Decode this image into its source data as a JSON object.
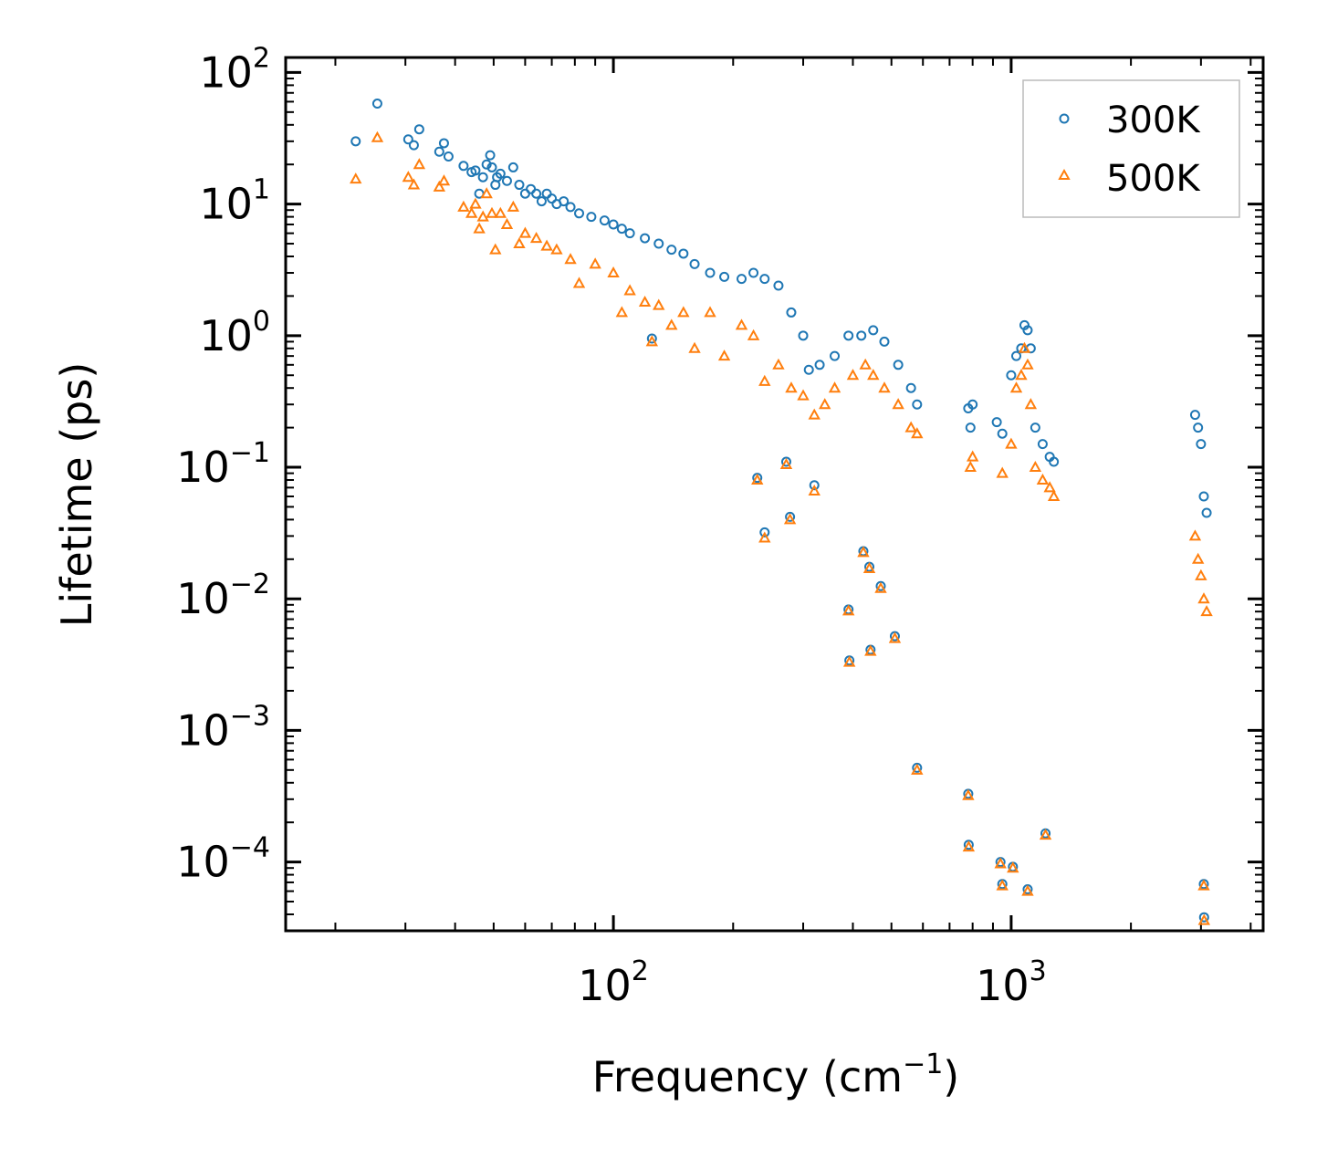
{
  "chart_data": {
    "type": "scatter",
    "title": "",
    "xlabel": "Frequency (cm",
    "xlabel_sup": "−1",
    "xlabel_end": ")",
    "ylabel": "Lifetime (ps)",
    "xscale": "log",
    "yscale": "log",
    "xlim": [
      15,
      4300
    ],
    "ylim": [
      3e-05,
      130
    ],
    "x_ticks": [
      {
        "value": 100,
        "base": "10",
        "exp": "2"
      },
      {
        "value": 1000,
        "base": "10",
        "exp": "3"
      }
    ],
    "y_ticks": [
      {
        "value": 100,
        "base": "10",
        "exp": "2"
      },
      {
        "value": 10,
        "base": "10",
        "exp": "1"
      },
      {
        "value": 1,
        "base": "10",
        "exp": "0"
      },
      {
        "value": 0.1,
        "base": "10",
        "exp": "−1"
      },
      {
        "value": 0.01,
        "base": "10",
        "exp": "−2"
      },
      {
        "value": 0.001,
        "base": "10",
        "exp": "−3"
      },
      {
        "value": 0.0001,
        "base": "10",
        "exp": "−4"
      }
    ],
    "legend": {
      "position": "top-right",
      "entries": [
        "300K",
        "500K"
      ]
    },
    "colors": {
      "300K": "#1f77b4",
      "500K": "#ff7f0e"
    },
    "series": [
      {
        "name": "300K",
        "marker": "circle",
        "points": [
          [
            22.5,
            30
          ],
          [
            25.5,
            58
          ],
          [
            30.5,
            31
          ],
          [
            31.5,
            28
          ],
          [
            32.5,
            37
          ],
          [
            36.5,
            25
          ],
          [
            37.5,
            29
          ],
          [
            38.5,
            23
          ],
          [
            42,
            19.5
          ],
          [
            44,
            17.5
          ],
          [
            45,
            18
          ],
          [
            46,
            12
          ],
          [
            47,
            16
          ],
          [
            48,
            20
          ],
          [
            49,
            23.5
          ],
          [
            49.5,
            19
          ],
          [
            50.5,
            14
          ],
          [
            51,
            16
          ],
          [
            52,
            17
          ],
          [
            54,
            15
          ],
          [
            56,
            19
          ],
          [
            58,
            14
          ],
          [
            60,
            12
          ],
          [
            62,
            13
          ],
          [
            64,
            12
          ],
          [
            66,
            10.5
          ],
          [
            68,
            12
          ],
          [
            70,
            11
          ],
          [
            72,
            10
          ],
          [
            75,
            10.5
          ],
          [
            78,
            9.5
          ],
          [
            82,
            8.5
          ],
          [
            88,
            8
          ],
          [
            95,
            7.5
          ],
          [
            100,
            7
          ],
          [
            105,
            6.5
          ],
          [
            110,
            6
          ],
          [
            120,
            5.5
          ],
          [
            125,
            0.95
          ],
          [
            130,
            5
          ],
          [
            140,
            4.5
          ],
          [
            150,
            4.2
          ],
          [
            160,
            3.5
          ],
          [
            175,
            3
          ],
          [
            190,
            2.8
          ],
          [
            210,
            2.7
          ],
          [
            225,
            3
          ],
          [
            240,
            2.7
          ],
          [
            260,
            2.4
          ],
          [
            280,
            1.5
          ],
          [
            300,
            1
          ],
          [
            310,
            0.55
          ],
          [
            330,
            0.6
          ],
          [
            360,
            0.7
          ],
          [
            390,
            1
          ],
          [
            420,
            1
          ],
          [
            450,
            1.1
          ],
          [
            480,
            0.9
          ],
          [
            520,
            0.6
          ],
          [
            560,
            0.4
          ],
          [
            580,
            0.3
          ],
          [
            780,
            0.28
          ],
          [
            790,
            0.2
          ],
          [
            800,
            0.3
          ],
          [
            920,
            0.22
          ],
          [
            950,
            0.18
          ],
          [
            1000,
            0.5
          ],
          [
            1030,
            0.7
          ],
          [
            1060,
            0.8
          ],
          [
            1080,
            1.2
          ],
          [
            1100,
            1.1
          ],
          [
            1120,
            0.8
          ],
          [
            1150,
            0.2
          ],
          [
            1200,
            0.15
          ],
          [
            1250,
            0.12
          ],
          [
            1280,
            0.11
          ],
          [
            2900,
            0.25
          ],
          [
            2950,
            0.2
          ],
          [
            3000,
            0.15
          ],
          [
            3050,
            0.06
          ],
          [
            3100,
            0.045
          ],
          [
            230,
            0.083
          ],
          [
            240,
            0.032
          ],
          [
            272,
            0.11
          ],
          [
            278,
            0.042
          ],
          [
            320,
            0.073
          ],
          [
            390,
            0.0083
          ],
          [
            392,
            0.0034
          ],
          [
            425,
            0.023
          ],
          [
            440,
            0.0175
          ],
          [
            443,
            0.0041
          ],
          [
            470,
            0.0125
          ],
          [
            510,
            0.0052
          ],
          [
            580,
            0.00052
          ],
          [
            780,
            0.00033
          ],
          [
            782,
            0.000135
          ],
          [
            940,
            0.0001
          ],
          [
            950,
            6.8e-05
          ],
          [
            1010,
            9.2e-05
          ],
          [
            1100,
            6.2e-05
          ],
          [
            1220,
            0.000165
          ],
          [
            3050,
            6.8e-05
          ],
          [
            3055,
            3.8e-05
          ]
        ]
      },
      {
        "name": "500K",
        "marker": "triangle",
        "points": [
          [
            22.5,
            15.5
          ],
          [
            25.5,
            32
          ],
          [
            30.5,
            16
          ],
          [
            31.5,
            14
          ],
          [
            32.5,
            20
          ],
          [
            36.5,
            13.5
          ],
          [
            37.5,
            15
          ],
          [
            42,
            9.5
          ],
          [
            44,
            8.5
          ],
          [
            45,
            10
          ],
          [
            46,
            6.5
          ],
          [
            47,
            8
          ],
          [
            48,
            12
          ],
          [
            49.5,
            8.5
          ],
          [
            50.5,
            4.5
          ],
          [
            52,
            8.5
          ],
          [
            54,
            7
          ],
          [
            56,
            9.5
          ],
          [
            58,
            5
          ],
          [
            60,
            6
          ],
          [
            64,
            5.5
          ],
          [
            68,
            4.8
          ],
          [
            72,
            4.5
          ],
          [
            78,
            3.8
          ],
          [
            82,
            2.5
          ],
          [
            90,
            3.5
          ],
          [
            100,
            3
          ],
          [
            105,
            1.5
          ],
          [
            110,
            2.2
          ],
          [
            120,
            1.8
          ],
          [
            125,
            0.9
          ],
          [
            130,
            1.7
          ],
          [
            140,
            1.2
          ],
          [
            150,
            1.5
          ],
          [
            160,
            0.8
          ],
          [
            175,
            1.5
          ],
          [
            190,
            0.7
          ],
          [
            210,
            1.2
          ],
          [
            225,
            1
          ],
          [
            240,
            0.45
          ],
          [
            260,
            0.6
          ],
          [
            280,
            0.4
          ],
          [
            300,
            0.35
          ],
          [
            320,
            0.25
          ],
          [
            340,
            0.3
          ],
          [
            360,
            0.4
          ],
          [
            400,
            0.5
          ],
          [
            430,
            0.6
          ],
          [
            450,
            0.5
          ],
          [
            480,
            0.4
          ],
          [
            520,
            0.3
          ],
          [
            560,
            0.2
          ],
          [
            580,
            0.18
          ],
          [
            790,
            0.1
          ],
          [
            800,
            0.12
          ],
          [
            950,
            0.09
          ],
          [
            1000,
            0.15
          ],
          [
            1030,
            0.4
          ],
          [
            1060,
            0.5
          ],
          [
            1080,
            0.8
          ],
          [
            1100,
            0.6
          ],
          [
            1120,
            0.3
          ],
          [
            1150,
            0.1
          ],
          [
            1200,
            0.08
          ],
          [
            1250,
            0.07
          ],
          [
            1280,
            0.06
          ],
          [
            2900,
            0.03
          ],
          [
            2950,
            0.02
          ],
          [
            3000,
            0.015
          ],
          [
            3050,
            0.01
          ],
          [
            3100,
            0.008
          ],
          [
            230,
            0.08
          ],
          [
            240,
            0.029
          ],
          [
            272,
            0.105
          ],
          [
            278,
            0.04
          ],
          [
            320,
            0.066
          ],
          [
            390,
            0.0081
          ],
          [
            392,
            0.0033
          ],
          [
            425,
            0.0225
          ],
          [
            440,
            0.017
          ],
          [
            443,
            0.004
          ],
          [
            470,
            0.012
          ],
          [
            510,
            0.005
          ],
          [
            580,
            0.0005
          ],
          [
            780,
            0.00032
          ],
          [
            782,
            0.00013
          ],
          [
            940,
            9.7e-05
          ],
          [
            950,
            6.6e-05
          ],
          [
            1010,
            9e-05
          ],
          [
            1100,
            6e-05
          ],
          [
            1220,
            0.00016
          ],
          [
            3050,
            6.6e-05
          ],
          [
            3055,
            3.6e-05
          ]
        ]
      }
    ]
  }
}
